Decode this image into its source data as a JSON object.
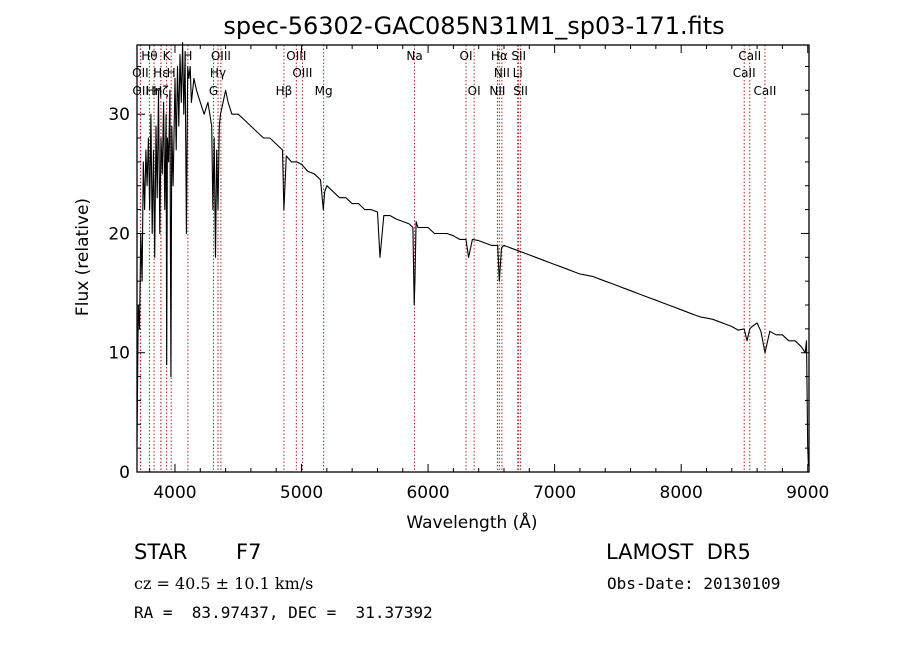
{
  "chart_data": {
    "type": "line",
    "title": "spec-56302-GAC085N31M1_sp03-171.fits",
    "xlabel": "Wavelength (Å)",
    "ylabel": "Flux (relative)",
    "xlim": [
      3700,
      9010
    ],
    "ylim": [
      0,
      35.8
    ],
    "xticks": [
      4000,
      5000,
      6000,
      7000,
      8000,
      9000
    ],
    "yticks": [
      0,
      10,
      20,
      30
    ],
    "series": [
      {
        "x": [
          3700,
          3710,
          3720,
          3730,
          3740,
          3750,
          3760,
          3770,
          3780,
          3790,
          3800,
          3810,
          3820,
          3830,
          3840,
          3850,
          3860,
          3870,
          3880,
          3890,
          3900,
          3910,
          3920,
          3930,
          3935,
          3940,
          3950,
          3960,
          3968,
          3975,
          3985,
          4000,
          4010,
          4020,
          4030,
          4040,
          4050,
          4060,
          4070,
          4080,
          4090,
          4101,
          4110,
          4120,
          4130,
          4150,
          4170,
          4200,
          4230,
          4260,
          4290,
          4300,
          4310,
          4320,
          4330,
          4340,
          4350,
          4360,
          4380,
          4400,
          4420,
          4450,
          4480,
          4500,
          4550,
          4600,
          4650,
          4700,
          4750,
          4800,
          4850,
          4861,
          4880,
          4920,
          4960,
          5000,
          5050,
          5100,
          5150,
          5172,
          5183,
          5200,
          5250,
          5300,
          5350,
          5400,
          5450,
          5500,
          5550,
          5600,
          5620,
          5650,
          5700,
          5750,
          5800,
          5850,
          5880,
          5890,
          5896,
          5905,
          5920,
          5950,
          6000,
          6050,
          6100,
          6150,
          6200,
          6250,
          6300,
          6320,
          6350,
          6400,
          6450,
          6500,
          6550,
          6563,
          6580,
          6600,
          6650,
          6700,
          6750,
          6800,
          6850,
          6900,
          6950,
          7000,
          7050,
          7100,
          7150,
          7200,
          7250,
          7300,
          7350,
          7400,
          7450,
          7500,
          7550,
          7600,
          7650,
          7700,
          7750,
          7800,
          7850,
          7900,
          7950,
          8000,
          8050,
          8100,
          8150,
          8200,
          8250,
          8300,
          8350,
          8400,
          8450,
          8498,
          8520,
          8542,
          8560,
          8600,
          8630,
          8662,
          8700,
          8750,
          8800,
          8850,
          8900,
          8950,
          8980,
          8990,
          9000,
          9005
        ],
        "values": [
          2.5,
          14,
          12,
          20,
          16,
          26,
          22,
          27,
          24,
          28,
          22,
          30,
          20,
          27,
          18,
          29,
          23,
          32,
          20,
          28,
          25,
          31,
          22,
          30,
          9,
          28,
          26,
          32,
          8,
          29,
          24,
          33,
          27,
          34,
          29,
          35,
          31,
          36,
          30,
          35,
          20,
          34,
          33,
          34,
          31,
          33,
          32,
          31,
          30,
          31,
          29,
          22,
          28,
          18,
          27,
          22,
          29,
          30,
          31,
          32,
          31,
          30,
          30,
          30,
          29.5,
          29,
          28.5,
          28,
          28,
          27.5,
          27,
          22,
          26.5,
          26,
          26,
          25.8,
          25.2,
          25,
          24.5,
          22,
          23.5,
          24,
          23.5,
          23,
          23,
          22.5,
          22.5,
          22,
          22,
          21.8,
          18,
          21.5,
          21.5,
          21.2,
          21,
          20.8,
          20.5,
          14,
          16,
          21,
          20.5,
          20.5,
          20.5,
          20,
          20,
          20,
          19.8,
          19.5,
          19.5,
          18,
          19.5,
          19.4,
          19.2,
          19,
          19,
          16,
          18.8,
          19,
          18.8,
          18.6,
          18.4,
          18.2,
          18,
          17.8,
          17.6,
          17.4,
          17.2,
          17,
          16.8,
          16.6,
          16.5,
          16.4,
          16.2,
          16,
          15.8,
          15.6,
          15.4,
          15.2,
          15,
          14.8,
          14.6,
          14.4,
          14.2,
          14,
          13.8,
          13.6,
          13.4,
          13.2,
          13,
          12.9,
          12.8,
          12.6,
          12.4,
          12.2,
          11.9,
          12,
          11,
          12,
          12.2,
          12.5,
          11.8,
          10,
          11.8,
          11.5,
          11.5,
          11,
          11,
          10.5,
          10,
          11,
          2.2,
          0.5
        ]
      }
    ],
    "emission_lines": [
      {
        "name": "Hθ",
        "wavelength": 3798,
        "row": 0
      },
      {
        "name": "K",
        "wavelength": 3934,
        "row": 0
      },
      {
        "name": "H",
        "wavelength": 4102,
        "row": 0
      },
      {
        "name": "OIII",
        "wavelength": 4363,
        "row": 0
      },
      {
        "name": "OIII",
        "wavelength": 4959,
        "row": 0
      },
      {
        "name": "OI",
        "wavelength": 6300,
        "row": 0
      },
      {
        "name": "Hα",
        "wavelength": 6563,
        "row": 0
      },
      {
        "name": "SII",
        "wavelength": 6716,
        "row": 0
      },
      {
        "name": "CaII",
        "wavelength": 8542,
        "row": 0
      },
      {
        "name": "OII",
        "wavelength": 3727,
        "row": 1
      },
      {
        "name": "Hε",
        "wavelength": 3889,
        "row": 1
      },
      {
        "name": "H",
        "wavelength": 3970,
        "row": 1
      },
      {
        "name": "Hγ",
        "wavelength": 4340,
        "row": 1
      },
      {
        "name": "OIII",
        "wavelength": 5007,
        "row": 1
      },
      {
        "name": "NII",
        "wavelength": 6583,
        "row": 1
      },
      {
        "name": "Li",
        "wavelength": 6708,
        "row": 1
      },
      {
        "name": "CaII",
        "wavelength": 8498,
        "row": 1
      },
      {
        "name": "OII",
        "wavelength": 3729,
        "row": 2
      },
      {
        "name": "Hη",
        "wavelength": 3835,
        "row": 2
      },
      {
        "name": "Hζ",
        "wavelength": 3889,
        "row": 2
      },
      {
        "name": "G",
        "wavelength": 4305,
        "row": 2
      },
      {
        "name": "Hβ",
        "wavelength": 4861,
        "row": 2
      },
      {
        "name": "Mg",
        "wavelength": 5175,
        "row": 2
      },
      {
        "name": "Na",
        "wavelength": 5893,
        "row": 0
      },
      {
        "name": "OI",
        "wavelength": 6364,
        "row": 2
      },
      {
        "name": "NII",
        "wavelength": 6548,
        "row": 2
      },
      {
        "name": "SII",
        "wavelength": 6731,
        "row": 2
      },
      {
        "name": "CaII",
        "wavelength": 8662,
        "row": 2
      }
    ],
    "line_color": "#000000",
    "marker_color": "#b22222"
  },
  "footer": {
    "class_label": "STAR",
    "subclass": "F7",
    "survey": "LAMOST  DR5",
    "cz": "cz = 40.5 ± 10.1 km/s",
    "obs_date": "Obs-Date: 20130109",
    "radec": "RA =  83.97437, DEC =  31.37392"
  }
}
